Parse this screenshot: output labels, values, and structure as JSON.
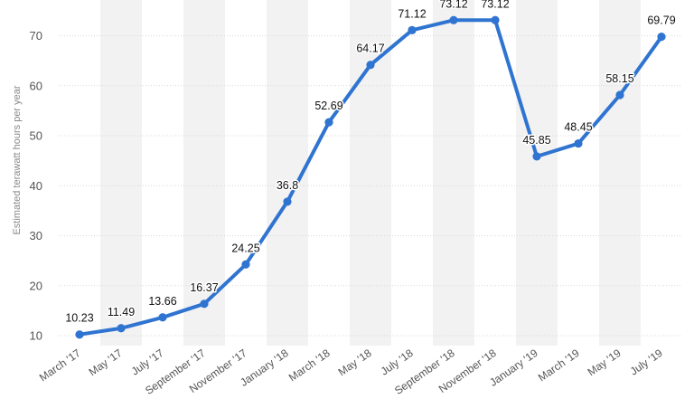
{
  "chart_data": {
    "type": "line",
    "ylabel": "Estimated terawatt hours per year",
    "xlabel": "",
    "ylim": [
      8,
      76
    ],
    "yticks": [
      10,
      20,
      30,
      40,
      50,
      60,
      70
    ],
    "grid": true,
    "categories": [
      "March '17",
      "May '17",
      "July '17",
      "September '17",
      "November '17",
      "January '18",
      "March '18",
      "May '18",
      "July '18",
      "September '18",
      "November '18",
      "January '19",
      "March '19",
      "May '19",
      "July '19"
    ],
    "series": [
      {
        "values": [
          10.23,
          11.49,
          13.66,
          16.37,
          24.25,
          36.8,
          52.69,
          64.17,
          71.12,
          73.12,
          73.12,
          45.85,
          48.45,
          58.15,
          69.79
        ],
        "labels": [
          "10.23",
          "11.49",
          "13.66",
          "16.37",
          "24.25",
          "36.8",
          "52.69",
          "64.17",
          "71.12",
          "73.12",
          "73.12",
          "45.85",
          "48.45",
          "58.15",
          "69.79"
        ]
      }
    ],
    "colors": {
      "line": "#2f74d0",
      "band": "#f2f2f2",
      "grid": "#d9d9d9"
    }
  }
}
